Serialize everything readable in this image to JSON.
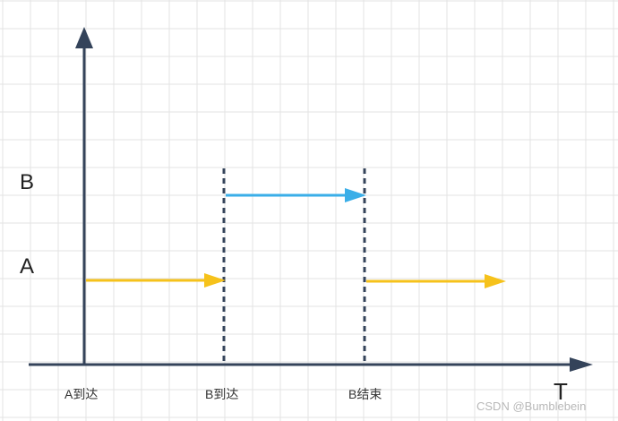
{
  "diagram": {
    "row_labels": {
      "a": "A",
      "b": "B"
    },
    "events": {
      "a_arrive": "A到达",
      "b_arrive": "B到达",
      "b_end": "B结束"
    },
    "time_axis_label": "T",
    "watermark": "CSDN @Bumblebein",
    "colors": {
      "axis": "#34435a",
      "process_a": "#f6c21b",
      "process_b": "#3aaee8",
      "grid": "#e3e3e3",
      "divider": "#34435a"
    }
  }
}
